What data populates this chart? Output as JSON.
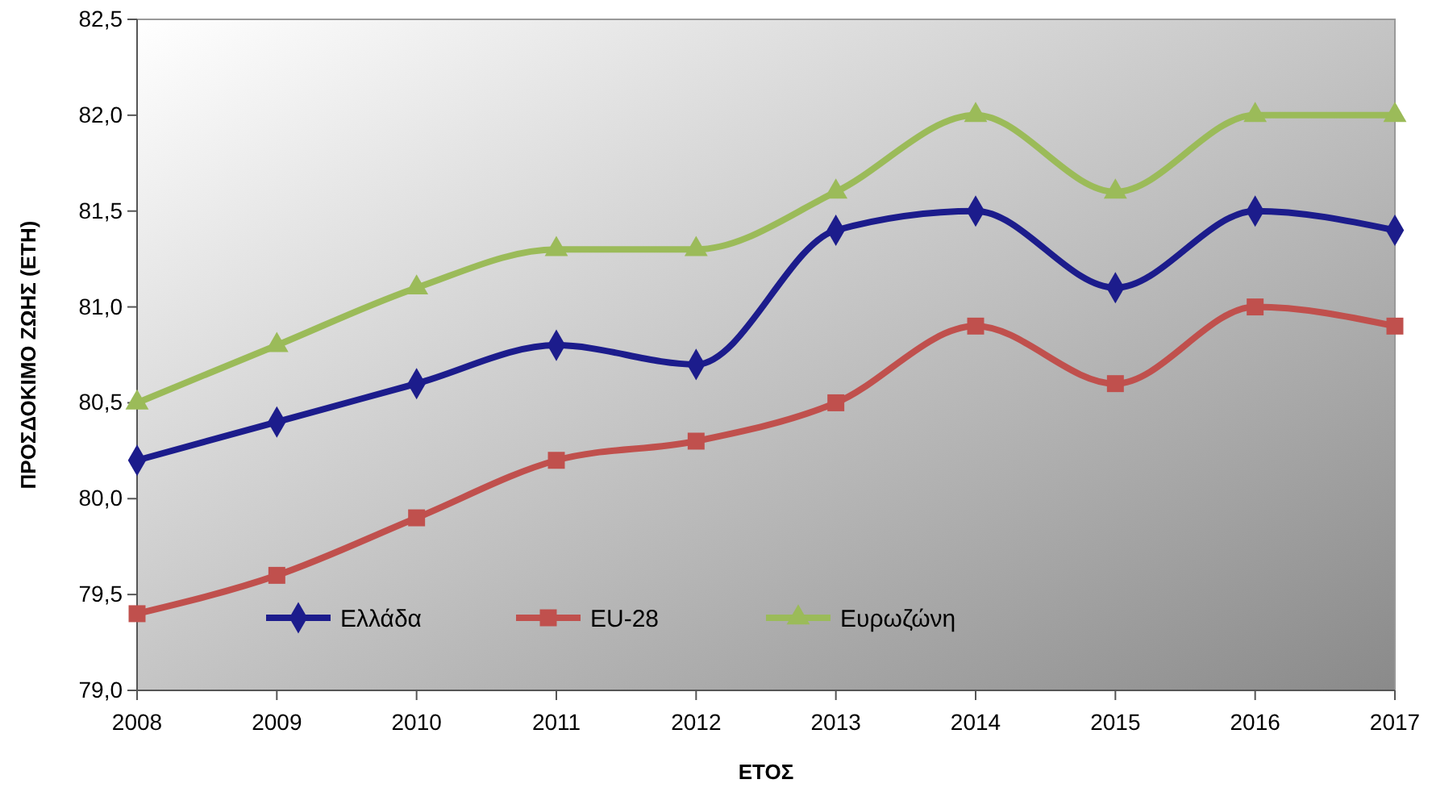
{
  "chart_data": {
    "type": "line",
    "xlabel": "ΕΤΟΣ",
    "ylabel": "ΠΡΟΣΔΟΚΙΜΟ ΖΩΗΣ (ΕΤΗ)",
    "x": [
      2008,
      2009,
      2010,
      2011,
      2012,
      2013,
      2014,
      2015,
      2016,
      2017
    ],
    "xlim": [
      2008,
      2017
    ],
    "xticks": [
      2008,
      2009,
      2010,
      2011,
      2012,
      2013,
      2014,
      2015,
      2016,
      2017
    ],
    "ylim": [
      79,
      82.5
    ],
    "yticks": [
      {
        "value": 79,
        "label": "79,0"
      },
      {
        "value": 79.5,
        "label": "79,5"
      },
      {
        "value": 80,
        "label": "80,0"
      },
      {
        "value": 80.5,
        "label": "80,5"
      },
      {
        "value": 81,
        "label": "81,0"
      },
      {
        "value": 81.5,
        "label": "81,5"
      },
      {
        "value": 82,
        "label": "82,0"
      },
      {
        "value": 82.5,
        "label": "82,5"
      }
    ],
    "grid": false,
    "legend": "bottom",
    "series": [
      {
        "name": "Ελλάδα",
        "color": "#1c1c8c",
        "marker": "diamond",
        "values": [
          80.2,
          80.4,
          80.6,
          80.8,
          80.7,
          81.4,
          81.5,
          81.1,
          81.5,
          81.4
        ]
      },
      {
        "name": "EU-28",
        "color": "#c0504d",
        "marker": "square",
        "values": [
          79.4,
          79.6,
          79.9,
          80.2,
          80.3,
          80.5,
          80.9,
          80.6,
          81.0,
          80.9
        ]
      },
      {
        "name": "Ευρωζώνη",
        "color": "#9bbb59",
        "marker": "triangle",
        "values": [
          80.5,
          80.8,
          81.1,
          81.3,
          81.3,
          81.6,
          82.0,
          81.6,
          82.0,
          82.0
        ]
      }
    ]
  }
}
